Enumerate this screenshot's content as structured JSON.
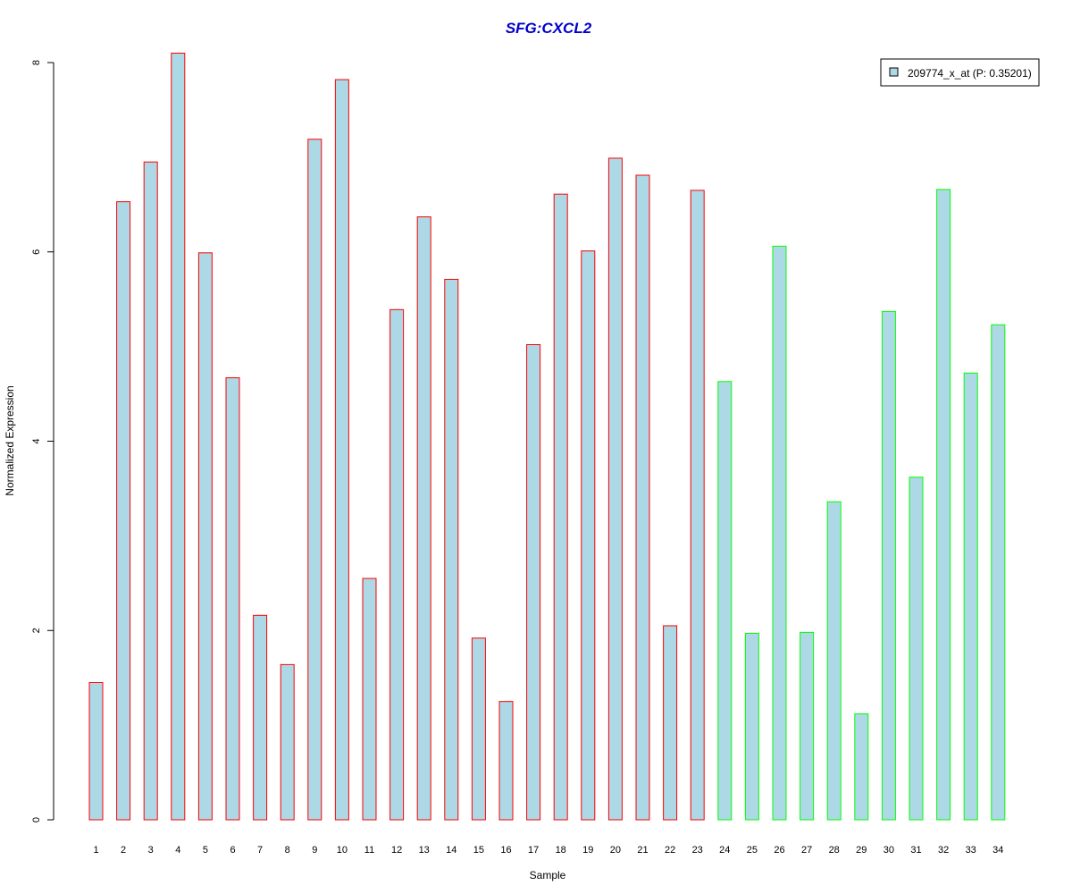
{
  "chart_data": {
    "type": "bar",
    "title": "SFG:CXCL2",
    "xlabel": "Sample",
    "ylabel": "Normalized Expression",
    "ylim": [
      0,
      8
    ],
    "yticks": [
      0,
      2,
      4,
      6,
      8
    ],
    "categories": [
      "1",
      "2",
      "3",
      "4",
      "5",
      "6",
      "7",
      "8",
      "9",
      "10",
      "11",
      "12",
      "13",
      "14",
      "15",
      "16",
      "17",
      "18",
      "19",
      "20",
      "21",
      "22",
      "23",
      "24",
      "25",
      "26",
      "27",
      "28",
      "29",
      "30",
      "31",
      "32",
      "33",
      "34"
    ],
    "series": [
      {
        "name": "209774_x_at (P: 0.35201)",
        "values": [
          1.45,
          6.53,
          6.95,
          8.1,
          5.99,
          4.67,
          2.16,
          1.64,
          7.19,
          7.82,
          2.55,
          5.39,
          6.37,
          5.71,
          1.92,
          1.25,
          5.02,
          6.61,
          6.01,
          6.99,
          6.81,
          2.05,
          6.65,
          4.63,
          1.97,
          6.06,
          1.98,
          3.36,
          1.12,
          5.37,
          3.62,
          6.66,
          4.72,
          5.23
        ]
      }
    ],
    "bar_fill": "#add8e6",
    "border_colors": [
      "#ff0000",
      "#ff0000",
      "#ff0000",
      "#ff0000",
      "#ff0000",
      "#ff0000",
      "#ff0000",
      "#ff0000",
      "#ff0000",
      "#ff0000",
      "#ff0000",
      "#ff0000",
      "#ff0000",
      "#ff0000",
      "#ff0000",
      "#ff0000",
      "#ff0000",
      "#ff0000",
      "#ff0000",
      "#ff0000",
      "#ff0000",
      "#ff0000",
      "#ff0000",
      "#00ff00",
      "#00ff00",
      "#00ff00",
      "#00ff00",
      "#00ff00",
      "#00ff00",
      "#00ff00",
      "#00ff00",
      "#00ff00",
      "#00ff00",
      "#00ff00"
    ],
    "title_color": "#0000cd",
    "legend": {
      "label": "209774_x_at (P: 0.35201)",
      "position": "top-right"
    },
    "grid": false
  }
}
